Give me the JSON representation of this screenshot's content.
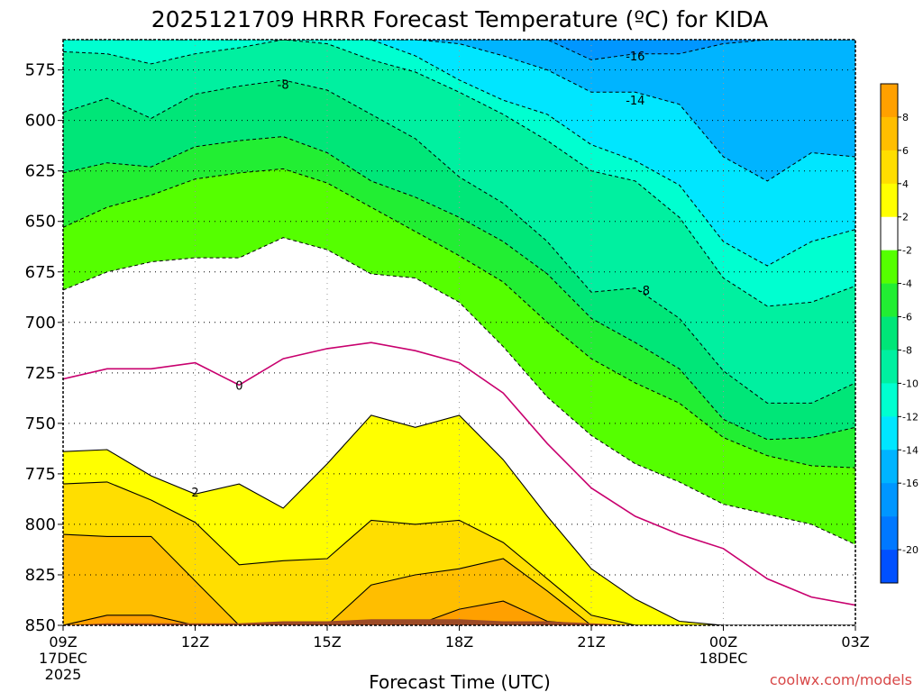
{
  "chart_data": {
    "type": "heatmap",
    "title": "2025121709 HRRR Forecast Temperature (ºC) for KIDA",
    "xlabel": "Forecast Time (UTC)",
    "ylabel": "",
    "y_scale": "pressure (hPa)",
    "ylim": [
      560,
      850
    ],
    "xlim": [
      9,
      27
    ],
    "yticks": [
      575,
      600,
      625,
      650,
      675,
      700,
      725,
      750,
      775,
      800,
      825,
      850
    ],
    "xticks": [
      {
        "hour": 9,
        "label": "09Z",
        "sub1": "17DEC",
        "sub2": "2025"
      },
      {
        "hour": 12,
        "label": "12Z",
        "sub1": "",
        "sub2": ""
      },
      {
        "hour": 15,
        "label": "15Z",
        "sub1": "",
        "sub2": ""
      },
      {
        "hour": 18,
        "label": "18Z",
        "sub1": "",
        "sub2": ""
      },
      {
        "hour": 21,
        "label": "21Z",
        "sub1": "",
        "sub2": ""
      },
      {
        "hour": 24,
        "label": "00Z",
        "sub1": "18DEC",
        "sub2": ""
      },
      {
        "hour": 27,
        "label": "03Z",
        "sub1": "",
        "sub2": ""
      }
    ],
    "hours": [
      9,
      10,
      11,
      12,
      13,
      14,
      15,
      16,
      17,
      18,
      19,
      20,
      21,
      22,
      23,
      24,
      25,
      26,
      27
    ],
    "isotherms": [
      {
        "value": -16,
        "pressure": [
          560,
          560,
          560,
          560,
          560,
          560,
          560,
          560,
          560,
          560,
          560,
          560,
          570,
          567,
          567,
          562,
          560,
          560,
          560
        ]
      },
      {
        "value": -14,
        "pressure": [
          560,
          560,
          560,
          560,
          560,
          560,
          560,
          560,
          560,
          562,
          568,
          575,
          586,
          586,
          592,
          618,
          630,
          616,
          618
        ]
      },
      {
        "value": -12,
        "pressure": [
          560,
          560,
          560,
          560,
          560,
          560,
          560,
          560,
          568,
          580,
          590,
          597,
          612,
          620,
          632,
          660,
          672,
          660,
          654
        ]
      },
      {
        "value": -10,
        "pressure": [
          566,
          567,
          572,
          567,
          564,
          560,
          562,
          570,
          576,
          586,
          597,
          610,
          625,
          630,
          648,
          678,
          692,
          690,
          682
        ]
      },
      {
        "value": -8,
        "pressure": [
          596,
          589,
          599,
          587,
          583,
          580,
          585,
          597,
          609,
          628,
          641,
          660,
          685,
          683,
          698,
          724,
          740,
          740,
          730
        ]
      },
      {
        "value": -6,
        "pressure": [
          626,
          621,
          623,
          613,
          610,
          608,
          616,
          630,
          638,
          648,
          660,
          676,
          698,
          710,
          723,
          748,
          758,
          757,
          752
        ]
      },
      {
        "value": -4,
        "pressure": [
          653,
          643,
          637,
          629,
          626,
          624,
          631,
          643,
          655,
          667,
          680,
          700,
          718,
          730,
          740,
          757,
          766,
          771,
          772
        ]
      },
      {
        "value": -2,
        "pressure": [
          684,
          675,
          670,
          668,
          668,
          658,
          664,
          676,
          678,
          690,
          712,
          737,
          756,
          770,
          779,
          790,
          795,
          800,
          810
        ]
      },
      {
        "value": 0,
        "pressure": [
          728,
          723,
          723,
          720,
          731,
          718,
          713,
          710,
          714,
          720,
          735,
          760,
          782,
          796,
          805,
          812,
          827,
          836,
          840
        ]
      },
      {
        "value": 2,
        "pressure": [
          764,
          763,
          776,
          785,
          780,
          792,
          770,
          746,
          752,
          746,
          768,
          796,
          822,
          837,
          848,
          850,
          850,
          850,
          850
        ]
      },
      {
        "value": 4,
        "pressure": [
          780,
          779,
          788,
          799,
          820,
          818,
          817,
          798,
          800,
          798,
          809,
          827,
          845,
          850,
          850,
          850,
          850,
          850,
          850
        ]
      },
      {
        "value": 6,
        "pressure": [
          805,
          806,
          806,
          828,
          850,
          850,
          850,
          830,
          825,
          822,
          817,
          833,
          850,
          850,
          850,
          850,
          850,
          850,
          850
        ]
      },
      {
        "value": 8,
        "pressure": [
          850,
          845,
          845,
          850,
          850,
          850,
          850,
          850,
          850,
          842,
          838,
          848,
          850,
          850,
          850,
          850,
          850,
          850,
          850
        ]
      }
    ],
    "surface_pressure": [
      850,
      849,
      849,
      849,
      849,
      848,
      848,
      847,
      847,
      847,
      848,
      848,
      849,
      850,
      851,
      852,
      853,
      853,
      854
    ],
    "contour_labels": [
      {
        "text": "-16",
        "hour": 22.0,
        "pressure": 568
      },
      {
        "text": "-14",
        "hour": 22.0,
        "pressure": 590
      },
      {
        "text": "-8",
        "hour": 14.0,
        "pressure": 582
      },
      {
        "text": "-8",
        "hour": 22.2,
        "pressure": 684
      },
      {
        "text": "0",
        "hour": 13.0,
        "pressure": 731
      },
      {
        "text": "2",
        "hour": 12.0,
        "pressure": 784
      }
    ],
    "colorbar": {
      "labels": [
        "8",
        "6",
        "4",
        "2",
        "-2",
        "-4",
        "-6",
        "-8",
        "-10",
        "-12",
        "-14",
        "-16",
        "-20"
      ],
      "bands": [
        {
          "lo": 8,
          "hi": 10,
          "color": "#ffa000"
        },
        {
          "lo": 6,
          "hi": 8,
          "color": "#ffbe00"
        },
        {
          "lo": 4,
          "hi": 6,
          "color": "#ffde00"
        },
        {
          "lo": 2,
          "hi": 4,
          "color": "#ffff00"
        },
        {
          "lo": -2,
          "hi": 2,
          "color": "#ffffff"
        },
        {
          "lo": -4,
          "hi": -2,
          "color": "#55ff00"
        },
        {
          "lo": -6,
          "hi": -4,
          "color": "#22ee33"
        },
        {
          "lo": -8,
          "hi": -6,
          "color": "#00e678"
        },
        {
          "lo": -10,
          "hi": -8,
          "color": "#00f0a0"
        },
        {
          "lo": -12,
          "hi": -10,
          "color": "#00ffd0"
        },
        {
          "lo": -14,
          "hi": -12,
          "color": "#00e6ff"
        },
        {
          "lo": -16,
          "hi": -14,
          "color": "#00b4ff"
        },
        {
          "lo": -18,
          "hi": -16,
          "color": "#0096ff"
        },
        {
          "lo": -20,
          "hi": -18,
          "color": "#0078ff"
        },
        {
          "lo": -22,
          "hi": -20,
          "color": "#0050ff"
        }
      ]
    },
    "colors": {
      "surface": "#9c4a26",
      "zero_line": "#c8006e",
      "grid": "#000000"
    }
  },
  "credit": "coolwx.com/models"
}
